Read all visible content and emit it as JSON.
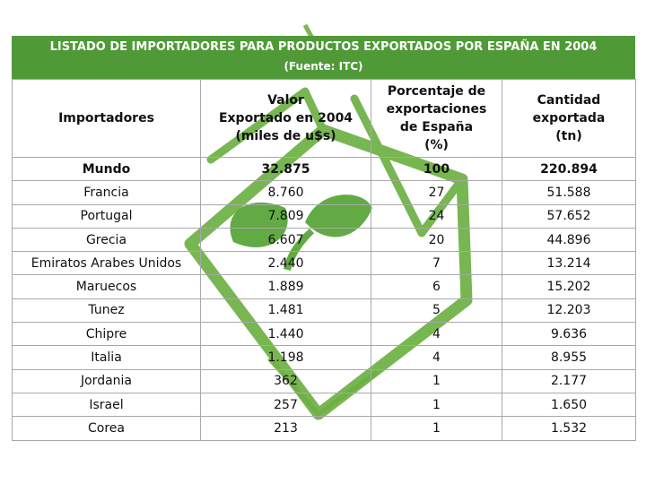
{
  "banner": {
    "title": "LISTADO DE IMPORTADORES PARA PRODUCTOS EXPORTADOS POR ESPAÑA EN 2004",
    "source": "(Fuente: ITC)"
  },
  "table": {
    "headers": {
      "c1": "Importadores",
      "c2_l1": "Valor",
      "c2_l2": "Exportado en 2004",
      "c2_l3": "(miles de u$s)",
      "c3_l1": "Porcentaje de",
      "c3_l2": "exportaciones",
      "c3_l3": "de España",
      "c3_l4": "(%)",
      "c4_l1": "Cantidad",
      "c4_l2": "exportada",
      "c4_l3": "(tn)"
    },
    "rows": [
      {
        "importer": "Mundo",
        "value": "32.875",
        "pct": "100",
        "qty": "220.894"
      },
      {
        "importer": "Francia",
        "value": "8.760",
        "pct": "27",
        "qty": "51.588"
      },
      {
        "importer": "Portugal",
        "value": "7.809",
        "pct": "24",
        "qty": "57.652"
      },
      {
        "importer": "Grecia",
        "value": "6.607",
        "pct": "20",
        "qty": "44.896"
      },
      {
        "importer": "Emiratos Arabes Unidos",
        "value": "2.440",
        "pct": "7",
        "qty": "13.214"
      },
      {
        "importer": "Maruecos",
        "value": "1.889",
        "pct": "6",
        "qty": "15.202"
      },
      {
        "importer": "Tunez",
        "value": "1.481",
        "pct": "5",
        "qty": "12.203"
      },
      {
        "importer": "Chipre",
        "value": "1.440",
        "pct": "4",
        "qty": "9.636"
      },
      {
        "importer": "Italia",
        "value": "1.198",
        "pct": "4",
        "qty": "8.955"
      },
      {
        "importer": "Jordania",
        "value": "362",
        "pct": "1",
        "qty": "2.177"
      },
      {
        "importer": "Israel",
        "value": "257",
        "pct": "1",
        "qty": "1.650"
      },
      {
        "importer": "Corea",
        "value": "213",
        "pct": "1",
        "qty": "1.532"
      }
    ]
  },
  "colors": {
    "banner": "#4f9a36",
    "watermark": "#6cb043",
    "grid": "#a8a8a8"
  }
}
